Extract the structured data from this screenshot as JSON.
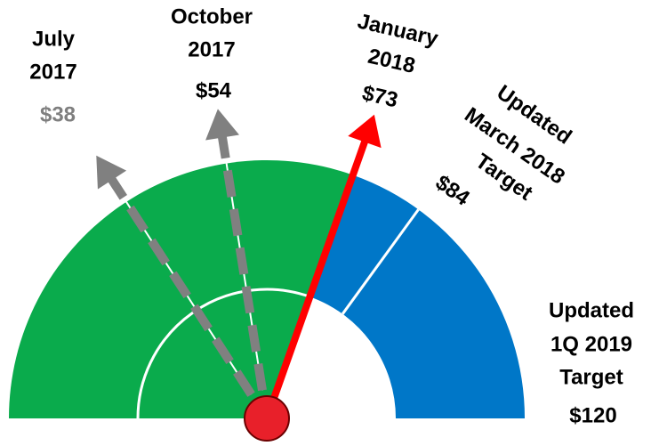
{
  "chart_data": {
    "type": "gauge",
    "categories": [
      [
        "July",
        "2017"
      ],
      [
        "October",
        "2017"
      ],
      [
        "January",
        "2018"
      ],
      [
        "Updated",
        "March 2018",
        "Target"
      ],
      [
        "Updated",
        "1Q 2019",
        "Target"
      ]
    ],
    "values": [
      38,
      54,
      73,
      84,
      120
    ],
    "value_labels": [
      "$38",
      "$54",
      "$73",
      "$84",
      "$120"
    ],
    "colors": [
      "#808080",
      "#808080",
      "#ff0000",
      "#ffffff",
      "#0077c8"
    ],
    "achieved_color": "#0aab4c",
    "ylim": [
      0,
      120
    ]
  }
}
